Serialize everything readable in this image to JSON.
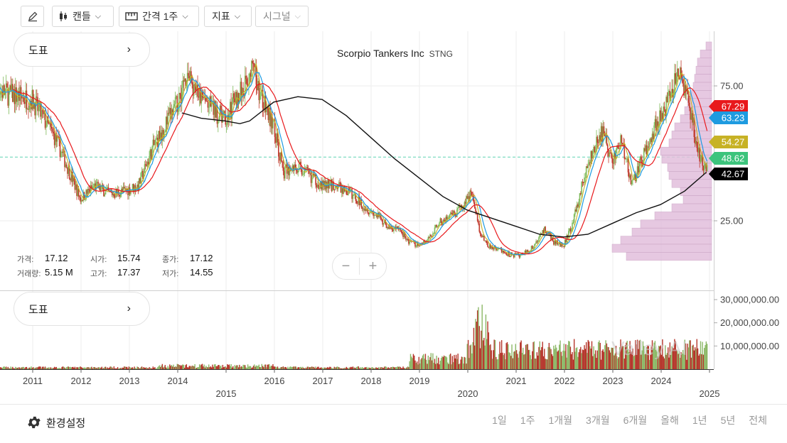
{
  "toolbar": {
    "draw_icon": "pencil-icon",
    "chart_type": "캔들",
    "interval": "간격 1주",
    "indicators": "지표",
    "signals": "시그널"
  },
  "legend_panel": {
    "label": "도표",
    "arrow": "›"
  },
  "volume_panel": {
    "label": "도표",
    "arrow": "›"
  },
  "title": {
    "name": "Scorpio Tankers Inc",
    "symbol": "STNG"
  },
  "ohlc": {
    "price_label": "가격:",
    "price": "17.12",
    "open_label": "시가:",
    "open": "15.74",
    "close_label": "종가:",
    "close": "17.12",
    "volume_label": "거래량:",
    "volume": "5.15 M",
    "high_label": "고가:",
    "high": "17.37",
    "low_label": "저가:",
    "low": "14.55"
  },
  "zoom": {
    "minus": "−",
    "plus": "+"
  },
  "watermark": "Valley AI",
  "price_tags": [
    {
      "value": "67.29",
      "color": "#e8191c"
    },
    {
      "value": "63.23",
      "color": "#1e9be0"
    },
    {
      "value": "54.27",
      "color": "#c7b225"
    },
    {
      "value": "48.62",
      "color": "#3cc47c"
    },
    {
      "value": "42.67",
      "color": "#000000"
    }
  ],
  "footer": {
    "settings_icon": "gear-icon",
    "settings_label": "환경설정",
    "periods": [
      "1일",
      "1주",
      "1개월",
      "3개월",
      "6개월",
      "올해",
      "1년",
      "5년",
      "전체"
    ]
  },
  "chart_data": {
    "type": "candlestick",
    "title": "Scorpio Tankers Inc STNG",
    "price_axis_ticks": [
      "75.00",
      "25.00"
    ],
    "volume_axis_ticks": [
      "30,000,000.00",
      "20,000,000.00",
      "10,000,000.00"
    ],
    "x_ticks": [
      "2011",
      "2012",
      "2013",
      "2014",
      "2015",
      "2016",
      "2017",
      "2018",
      "2019",
      "2020",
      "2021",
      "2022",
      "2023",
      "2024",
      "2025"
    ],
    "current_price_line": 48.62,
    "close_path": {
      "x": [
        2010.1,
        2010.5,
        2011.0,
        2011.5,
        2011.8,
        2012.0,
        2012.3,
        2012.6,
        2012.9,
        2013.2,
        2013.5,
        2013.8,
        2014.0,
        2014.2,
        2014.4,
        2014.7,
        2015.0,
        2015.2,
        2015.4,
        2015.55,
        2015.8,
        2016.0,
        2016.2,
        2016.5,
        2016.8,
        2017.0,
        2017.3,
        2017.6,
        2017.9,
        2018.2,
        2018.4,
        2018.6,
        2018.8,
        2019.0,
        2019.2,
        2019.4,
        2019.6,
        2019.8,
        2020.0,
        2020.1,
        2020.25,
        2020.4,
        2020.6,
        2020.8,
        2021.0,
        2021.2,
        2021.4,
        2021.6,
        2021.8,
        2022.0,
        2022.2,
        2022.4,
        2022.6,
        2022.8,
        2023.0,
        2023.2,
        2023.4,
        2023.6,
        2023.8,
        2024.0,
        2024.2,
        2024.35,
        2024.5,
        2024.6,
        2024.75,
        2024.95,
        2025.0
      ],
      "y": [
        75,
        72,
        70,
        55,
        42,
        33,
        38,
        35,
        36,
        38,
        52,
        62,
        68,
        80,
        72,
        67,
        62,
        70,
        75,
        82,
        68,
        60,
        43,
        45,
        41,
        38,
        38,
        35,
        30,
        26,
        22,
        22,
        17,
        16,
        18,
        24,
        26,
        28,
        33,
        36,
        22,
        16,
        15,
        13,
        12,
        13,
        16,
        22,
        17,
        16,
        25,
        40,
        50,
        58,
        47,
        55,
        38,
        47,
        55,
        65,
        70,
        80,
        75,
        68,
        52,
        43,
        45
      ]
    },
    "moving_averages": [
      {
        "name": "MA (red)",
        "color": "#e8191c",
        "last": 67.29
      },
      {
        "name": "MA (blue)",
        "color": "#1e9be0",
        "last": 63.23
      },
      {
        "name": "MA (yellow)",
        "color": "#c7b225",
        "last": 54.27
      },
      {
        "name": "MA (black)",
        "color": "#000000",
        "last": 42.67
      }
    ],
    "ma_black_path": {
      "x": [
        2014.1,
        2014.5,
        2015.0,
        2015.3,
        2015.5,
        2016.0,
        2016.5,
        2017.0,
        2017.5,
        2018.0,
        2018.5,
        2019.0,
        2019.5,
        2020.0,
        2020.5,
        2021.0,
        2021.5,
        2022.0,
        2022.5,
        2023.0,
        2023.5,
        2024.0,
        2024.5,
        2024.95
      ],
      "y": [
        65,
        63,
        62,
        61,
        62,
        69,
        71,
        70,
        64,
        56,
        48,
        41,
        34,
        29,
        26,
        23,
        20,
        19,
        20,
        24,
        28,
        31,
        36,
        43
      ]
    },
    "volume_profile_prices": [
      90,
      87,
      84,
      81,
      78,
      75,
      72,
      69,
      66,
      63,
      60,
      57,
      54,
      51,
      48,
      45,
      42,
      39,
      36,
      33,
      30,
      27,
      24,
      21,
      18,
      15,
      12
    ]
  }
}
